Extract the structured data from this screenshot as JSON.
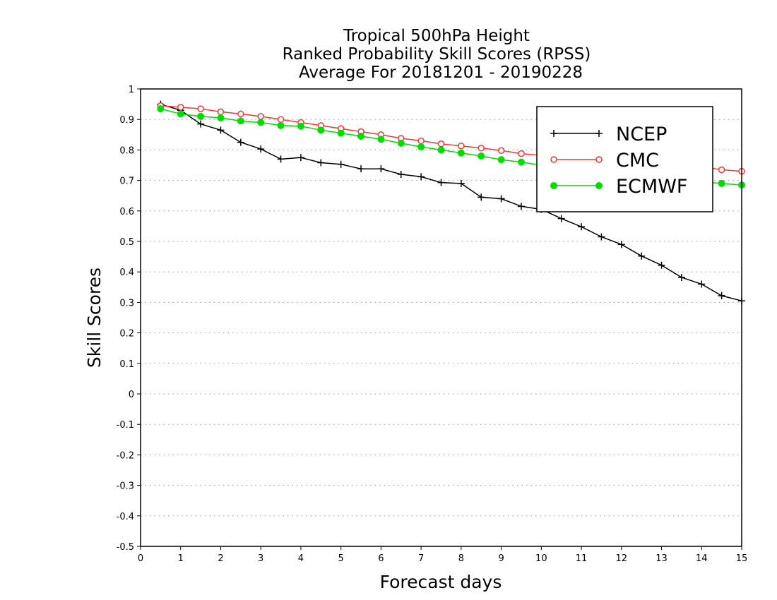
{
  "chart_data": {
    "type": "line",
    "title": [
      "Tropical 500hPa Height",
      "Ranked Probability Skill Scores (RPSS)",
      "Average For 20181201 - 20190228"
    ],
    "xlabel": "Forecast days",
    "ylabel": "Skill Scores",
    "xlim": [
      0,
      15
    ],
    "ylim": [
      -0.5,
      1
    ],
    "xticks": [
      0,
      1,
      2,
      3,
      4,
      5,
      6,
      7,
      8,
      9,
      10,
      11,
      12,
      13,
      14,
      15
    ],
    "yticks": [
      1,
      0.9,
      0.8,
      0.7,
      0.6,
      0.5,
      0.4,
      0.3,
      0.2,
      0.1,
      0,
      -0.1,
      -0.2,
      -0.3,
      -0.4,
      -0.5
    ],
    "grid": "horizontal dotted",
    "legend_position": "top-right",
    "x": [
      0.5,
      1,
      1.5,
      2,
      2.5,
      3,
      3.5,
      4,
      4.5,
      5,
      5.5,
      6,
      6.5,
      7,
      7.5,
      8,
      8.5,
      9,
      9.5,
      10,
      10.5,
      11,
      11.5,
      12,
      12.5,
      13,
      13.5,
      14,
      14.5,
      15
    ],
    "series": [
      {
        "name": "NCEP",
        "color": "#000000",
        "marker": "plus",
        "values": [
          0.95,
          0.93,
          0.885,
          0.865,
          0.825,
          0.803,
          0.77,
          0.775,
          0.758,
          0.753,
          0.738,
          0.738,
          0.72,
          0.712,
          0.693,
          0.69,
          0.645,
          0.64,
          0.615,
          0.605,
          0.575,
          0.548,
          0.515,
          0.49,
          0.452,
          0.422,
          0.382,
          0.36,
          0.322,
          0.305
        ]
      },
      {
        "name": "CMC",
        "color": "#ff3333",
        "marker": "open-circle",
        "values": [
          0.945,
          0.94,
          0.935,
          0.925,
          0.918,
          0.91,
          0.9,
          0.89,
          0.88,
          0.87,
          0.86,
          0.85,
          0.838,
          0.83,
          0.82,
          0.813,
          0.806,
          0.798,
          0.788,
          0.782,
          0.78,
          0.775,
          0.77,
          0.765,
          0.76,
          0.755,
          0.75,
          0.745,
          0.735,
          0.73
        ]
      },
      {
        "name": "ECMWF",
        "color": "#00dd00",
        "marker": "filled-circle",
        "values": [
          0.935,
          0.918,
          0.91,
          0.905,
          0.895,
          0.89,
          0.88,
          0.878,
          0.865,
          0.855,
          0.845,
          0.835,
          0.822,
          0.81,
          0.8,
          0.79,
          0.78,
          0.768,
          0.76,
          0.75,
          0.745,
          0.738,
          0.73,
          0.722,
          0.715,
          0.708,
          0.7,
          0.695,
          0.69,
          0.685
        ]
      }
    ]
  }
}
